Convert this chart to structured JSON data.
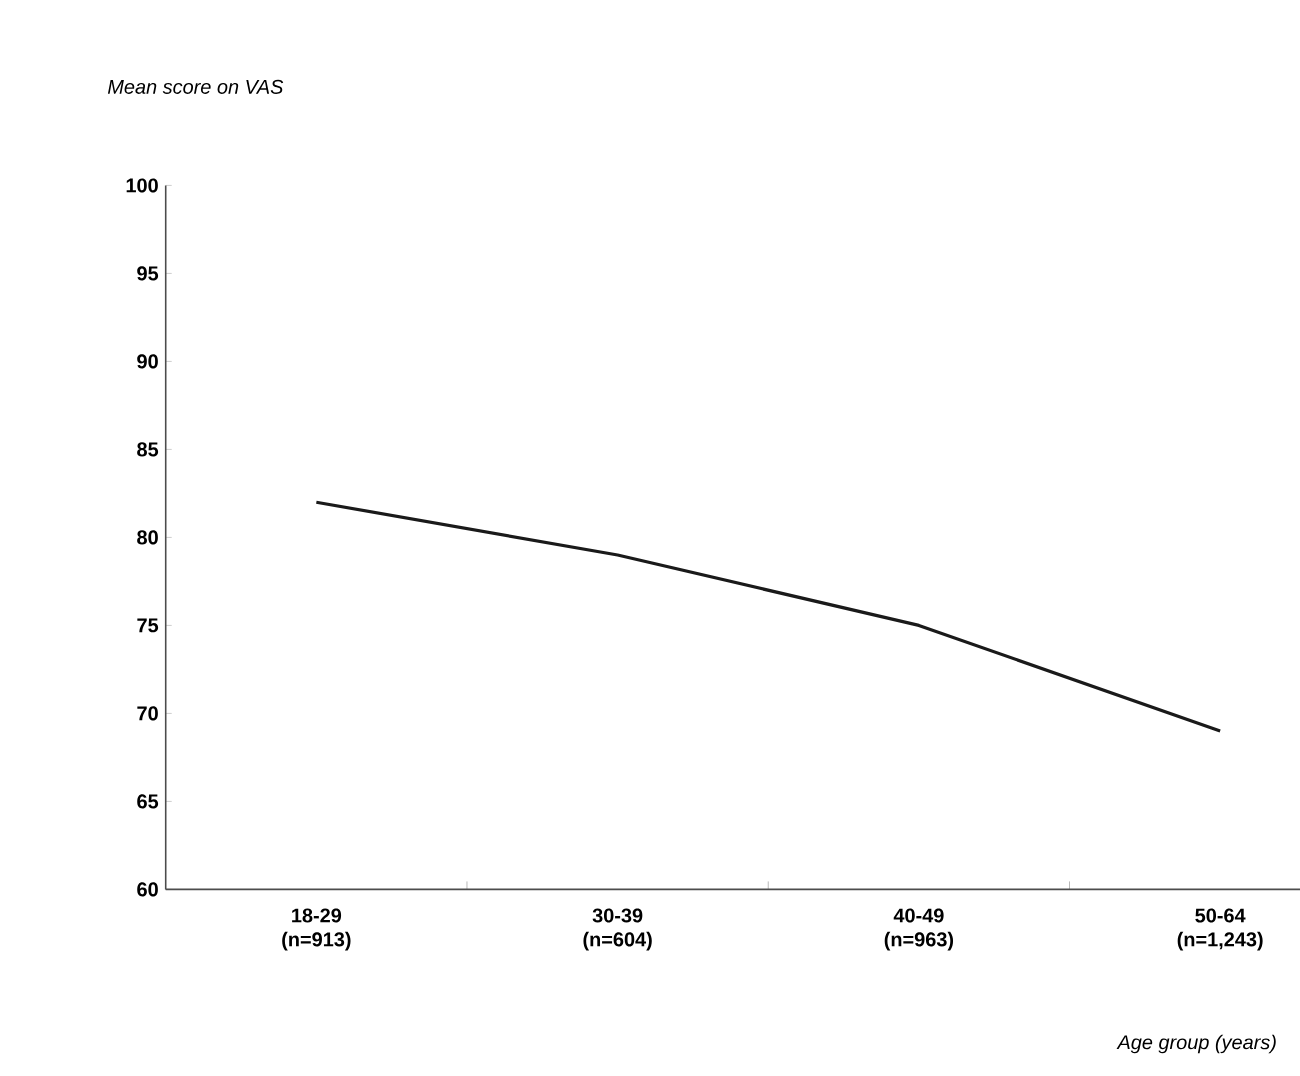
{
  "chart_data": {
    "type": "line",
    "ylabel": "Mean score on VAS",
    "xlabel": "Age group (years)",
    "categories": [
      "18-29 (n=913)",
      "30-39 (n=604)",
      "40-49 (n=963)",
      "50-64 (n=1,243)"
    ],
    "series": [
      {
        "color": "#1a1a1a",
        "values": [
          82,
          79,
          75,
          69
        ]
      }
    ],
    "ylim": [
      60,
      100
    ],
    "yticks": [
      60,
      65,
      70,
      75,
      80,
      85,
      90,
      95,
      100
    ],
    "grid": false,
    "marker": "none",
    "line_style": "solid"
  }
}
